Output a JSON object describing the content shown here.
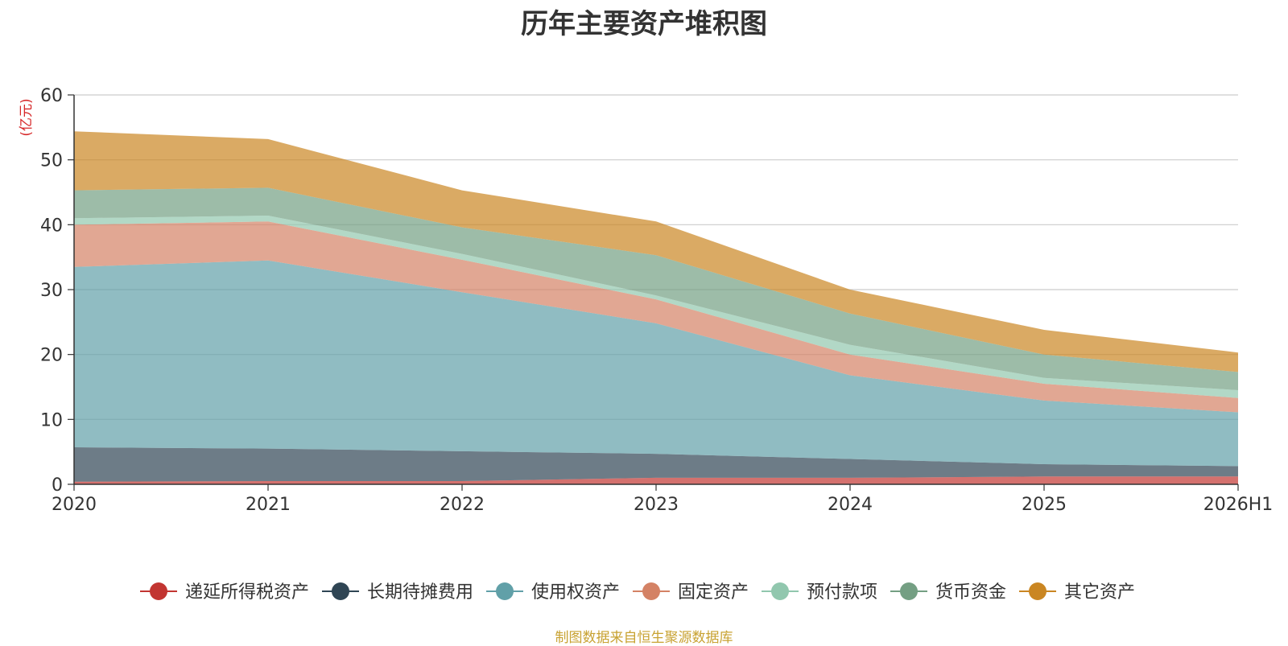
{
  "chart_data": {
    "type": "area",
    "stacked": true,
    "title": "历年主要资产堆积图",
    "ylabel": "(亿元)",
    "xlabel": "",
    "categories": [
      "2020",
      "2021",
      "2022",
      "2023",
      "2024",
      "2025",
      "2026H1"
    ],
    "ylim": [
      0,
      60
    ],
    "yticks": [
      0,
      10,
      20,
      30,
      40,
      50,
      60
    ],
    "grid": true,
    "legend_position": "bottom",
    "series": [
      {
        "name": "递延所得税资产",
        "color": "#c23531",
        "values": [
          0.4,
          0.5,
          0.5,
          1.0,
          1.0,
          1.2,
          1.2
        ]
      },
      {
        "name": "长期待摊费用",
        "color": "#2f4554",
        "values": [
          5.3,
          5.0,
          4.6,
          3.7,
          2.9,
          1.9,
          1.6
        ]
      },
      {
        "name": "使用权资产",
        "color": "#61a0a8",
        "values": [
          27.8,
          29.0,
          24.5,
          20.1,
          12.9,
          9.8,
          8.3
        ]
      },
      {
        "name": "固定资产",
        "color": "#d48265",
        "values": [
          6.5,
          6.0,
          5.0,
          3.7,
          3.2,
          2.6,
          2.2
        ]
      },
      {
        "name": "预付款项",
        "color": "#91c7ae",
        "values": [
          1.0,
          0.9,
          0.9,
          0.6,
          1.5,
          0.9,
          1.2
        ]
      },
      {
        "name": "货币资金",
        "color": "#749f83",
        "values": [
          4.3,
          4.3,
          4.1,
          6.2,
          4.8,
          3.6,
          2.8
        ]
      },
      {
        "name": "其它资产",
        "color": "#ca8622",
        "values": [
          9.1,
          7.5,
          5.7,
          5.2,
          3.7,
          3.8,
          3.0
        ]
      }
    ]
  },
  "footer": {
    "source": "制图数据来自恒生聚源数据库"
  }
}
